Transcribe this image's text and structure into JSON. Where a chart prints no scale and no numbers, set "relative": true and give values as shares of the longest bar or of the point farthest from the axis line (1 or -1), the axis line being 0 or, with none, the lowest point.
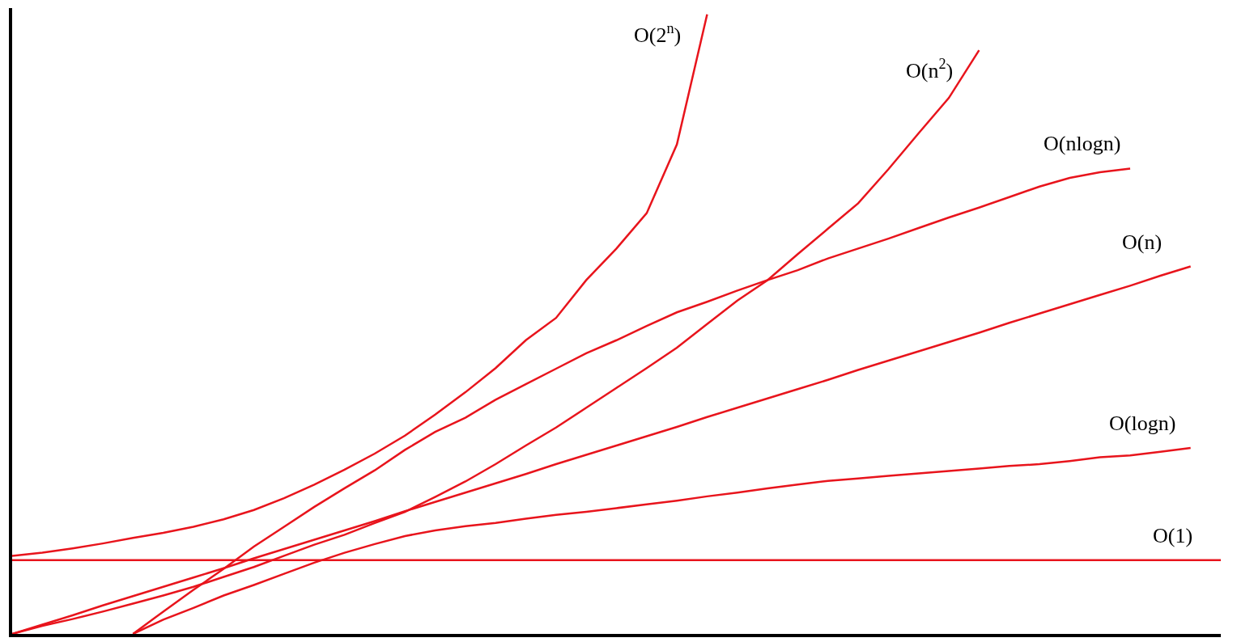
{
  "chart_data": {
    "type": "line",
    "relative": true,
    "legend": false,
    "marker": "none",
    "line_style": "solid",
    "categories": [
      null,
      null,
      null,
      null,
      null,
      null,
      null,
      null,
      null,
      null,
      null,
      null,
      null,
      null,
      null,
      null,
      null,
      null,
      null,
      null,
      null,
      null,
      null,
      null,
      null,
      null,
      null,
      null,
      null,
      null,
      null,
      null,
      null,
      null,
      null,
      null,
      null,
      null,
      null,
      null,
      null
    ],
    "series": [
      {
        "name": "O(2$^{n}$)",
        "color": "#e8141c",
        "values": [
          0.126,
          0.131,
          0.138,
          0.146,
          0.155,
          0.163,
          0.173,
          0.185,
          0.2,
          0.219,
          0.241,
          0.265,
          0.291,
          0.32,
          0.354,
          0.39,
          0.429,
          0.474,
          0.51,
          0.571,
          0.622,
          0.679,
          0.79,
          1.0,
          null,
          null,
          null,
          null,
          null,
          null,
          null,
          null,
          null,
          null,
          null,
          null,
          null,
          null,
          null,
          null,
          null
        ]
      },
      {
        "name": "O(n$^{2}$)",
        "color": "#e8141c",
        "values": [
          0,
          0.013,
          0.024,
          0.036,
          0.049,
          0.062,
          0.076,
          0.092,
          0.108,
          0.126,
          0.144,
          0.16,
          0.179,
          0.197,
          0.221,
          0.246,
          0.274,
          0.304,
          0.333,
          0.365,
          0.397,
          0.429,
          0.462,
          0.5,
          0.538,
          0.571,
          0.613,
          0.654,
          0.695,
          0.75,
          0.808,
          0.865,
          0.942,
          null,
          null,
          null,
          null,
          null,
          null,
          null,
          null
        ]
      },
      {
        "name": "O(nlogn)",
        "color": "#e8141c",
        "values": [
          null,
          null,
          null,
          null,
          0,
          0.036,
          0.071,
          0.105,
          0.141,
          0.173,
          0.205,
          0.235,
          0.264,
          0.297,
          0.326,
          0.349,
          0.378,
          0.403,
          0.428,
          0.453,
          0.474,
          0.497,
          0.519,
          0.536,
          0.554,
          0.571,
          0.587,
          0.606,
          0.622,
          0.638,
          0.655,
          0.672,
          0.688,
          0.705,
          0.722,
          0.736,
          0.745,
          0.751,
          null,
          null,
          null
        ]
      },
      {
        "name": "O(n)",
        "color": "#e8141c",
        "values": [
          0,
          0.015,
          0.03,
          0.046,
          0.061,
          0.076,
          0.091,
          0.106,
          0.122,
          0.137,
          0.152,
          0.167,
          0.182,
          0.198,
          0.213,
          0.228,
          0.243,
          0.258,
          0.274,
          0.289,
          0.304,
          0.319,
          0.334,
          0.35,
          0.365,
          0.38,
          0.395,
          0.41,
          0.426,
          0.441,
          0.456,
          0.471,
          0.486,
          0.502,
          0.517,
          0.532,
          0.547,
          0.562,
          0.578,
          0.593,
          null
        ]
      },
      {
        "name": "O(logn)",
        "color": "#e8141c",
        "values": [
          null,
          null,
          null,
          null,
          0,
          0.023,
          0.042,
          0.062,
          0.079,
          0.097,
          0.115,
          0.131,
          0.145,
          0.158,
          0.167,
          0.174,
          0.179,
          0.186,
          0.192,
          0.197,
          0.203,
          0.209,
          0.215,
          0.222,
          0.228,
          0.235,
          0.241,
          0.247,
          0.251,
          0.255,
          0.259,
          0.263,
          0.267,
          0.271,
          0.274,
          0.279,
          0.285,
          0.288,
          0.294,
          0.3,
          null
        ]
      },
      {
        "name": "O(1)",
        "color": "#e8141c",
        "values": [
          0.119,
          0.119,
          0.119,
          0.119,
          0.119,
          0.119,
          0.119,
          0.119,
          0.119,
          0.119,
          0.119,
          0.119,
          0.119,
          0.119,
          0.119,
          0.119,
          0.119,
          0.119,
          0.119,
          0.119,
          0.119,
          0.119,
          0.119,
          0.119,
          0.119,
          0.119,
          0.119,
          0.119,
          0.119,
          0.119,
          0.119,
          0.119,
          0.119,
          0.119,
          0.119,
          0.119,
          0.119,
          0.119,
          0.119,
          0.119,
          0.119
        ]
      }
    ]
  }
}
